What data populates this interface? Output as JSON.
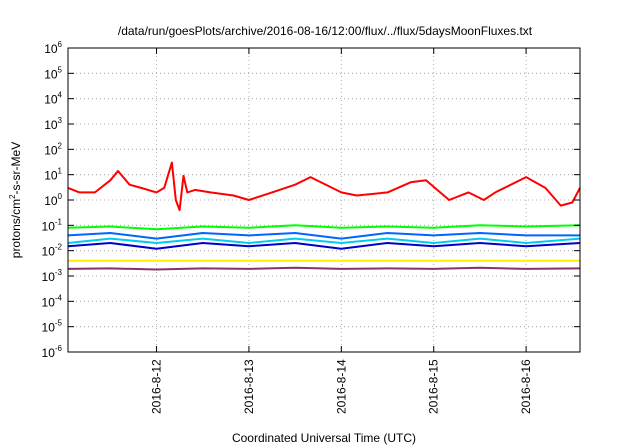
{
  "chart_data": {
    "type": "line",
    "title": "/data/run/goesPlots/archive/2016-08-16/12:00/flux/../flux/5daysMoonFluxes.txt",
    "xlabel": "Coordinated Universal Time (UTC)",
    "ylabel": {
      "prefix": "protons/cm",
      "sup": "2",
      "suffix": "-s-sr-MeV"
    },
    "y_scale": "log",
    "ylim": [
      1e-06,
      1000000.0
    ],
    "y_ticks": [
      {
        "base": "10",
        "exp": "-6",
        "value": 1e-06
      },
      {
        "base": "10",
        "exp": "-5",
        "value": 1e-05
      },
      {
        "base": "10",
        "exp": "-4",
        "value": 0.0001
      },
      {
        "base": "10",
        "exp": "-3",
        "value": 0.001
      },
      {
        "base": "10",
        "exp": "-2",
        "value": 0.01
      },
      {
        "base": "10",
        "exp": "-1",
        "value": 0.1
      },
      {
        "base": "10",
        "exp": "0",
        "value": 1
      },
      {
        "base": "10",
        "exp": "1",
        "value": 10
      },
      {
        "base": "10",
        "exp": "2",
        "value": 100
      },
      {
        "base": "10",
        "exp": "3",
        "value": 1000
      },
      {
        "base": "10",
        "exp": "4",
        "value": 10000
      },
      {
        "base": "10",
        "exp": "5",
        "value": 100000
      },
      {
        "base": "10",
        "exp": "6",
        "value": 1000000
      }
    ],
    "xlim": [
      "2016-08-11 01:00",
      "2016-08-16 14:00"
    ],
    "x_ticks": [
      "2016-8-12",
      "2016-8-13",
      "2016-8-14",
      "2016-8-15",
      "2016-8-16"
    ],
    "grid": true,
    "series": [
      {
        "color": "#ff0000",
        "x": [
          "2016-08-11 01:00",
          "2016-08-11 04:00",
          "2016-08-11 08:00",
          "2016-08-11 12:00",
          "2016-08-11 14:00",
          "2016-08-11 17:00",
          "2016-08-11 20:00",
          "2016-08-12 00:00",
          "2016-08-12 02:00",
          "2016-08-12 04:00",
          "2016-08-12 05:00",
          "2016-08-12 06:00",
          "2016-08-12 07:00",
          "2016-08-12 08:00",
          "2016-08-12 10:00",
          "2016-08-12 14:00",
          "2016-08-12 20:00",
          "2016-08-13 00:00",
          "2016-08-13 06:00",
          "2016-08-13 12:00",
          "2016-08-13 16:00",
          "2016-08-14 00:00",
          "2016-08-14 04:00",
          "2016-08-14 12:00",
          "2016-08-14 18:00",
          "2016-08-14 22:00",
          "2016-08-15 04:00",
          "2016-08-15 09:00",
          "2016-08-15 13:00",
          "2016-08-15 16:00",
          "2016-08-16 00:00",
          "2016-08-16 05:00",
          "2016-08-16 09:00",
          "2016-08-16 12:00",
          "2016-08-16 14:00"
        ],
        "values": [
          3,
          2,
          2,
          6,
          14,
          4,
          3,
          2,
          3,
          30,
          1,
          0.4,
          9,
          2,
          2.5,
          2,
          1.5,
          1,
          2,
          4,
          8,
          2,
          1.5,
          2,
          5,
          6,
          1,
          2,
          1,
          2,
          8,
          3,
          0.6,
          0.8,
          3
        ]
      },
      {
        "color": "#00ff00",
        "x": [
          "2016-08-11 01:00",
          "2016-08-11 12:00",
          "2016-08-12 00:00",
          "2016-08-12 12:00",
          "2016-08-13 00:00",
          "2016-08-13 12:00",
          "2016-08-14 00:00",
          "2016-08-14 12:00",
          "2016-08-15 00:00",
          "2016-08-15 12:00",
          "2016-08-16 00:00",
          "2016-08-16 14:00"
        ],
        "values": [
          0.08,
          0.09,
          0.07,
          0.09,
          0.08,
          0.1,
          0.08,
          0.09,
          0.08,
          0.1,
          0.09,
          0.1
        ]
      },
      {
        "color": "#00ccee",
        "x": [
          "2016-08-11 01:00",
          "2016-08-11 12:00",
          "2016-08-12 00:00",
          "2016-08-12 12:00",
          "2016-08-13 00:00",
          "2016-08-13 12:00",
          "2016-08-14 00:00",
          "2016-08-14 12:00",
          "2016-08-15 00:00",
          "2016-08-15 12:00",
          "2016-08-16 00:00",
          "2016-08-16 14:00"
        ],
        "values": [
          0.02,
          0.03,
          0.02,
          0.03,
          0.02,
          0.03,
          0.02,
          0.03,
          0.02,
          0.03,
          0.02,
          0.03
        ]
      },
      {
        "color": "#0066ff",
        "x": [
          "2016-08-11 01:00",
          "2016-08-11 12:00",
          "2016-08-12 00:00",
          "2016-08-12 12:00",
          "2016-08-13 00:00",
          "2016-08-13 12:00",
          "2016-08-14 00:00",
          "2016-08-14 12:00",
          "2016-08-15 00:00",
          "2016-08-15 12:00",
          "2016-08-16 00:00",
          "2016-08-16 14:00"
        ],
        "values": [
          0.04,
          0.05,
          0.03,
          0.05,
          0.04,
          0.05,
          0.03,
          0.05,
          0.04,
          0.05,
          0.04,
          0.04
        ]
      },
      {
        "color": "#0000cc",
        "x": [
          "2016-08-11 01:00",
          "2016-08-11 12:00",
          "2016-08-12 00:00",
          "2016-08-12 12:00",
          "2016-08-13 00:00",
          "2016-08-13 12:00",
          "2016-08-14 00:00",
          "2016-08-14 12:00",
          "2016-08-15 00:00",
          "2016-08-15 12:00",
          "2016-08-16 00:00",
          "2016-08-16 14:00"
        ],
        "values": [
          0.015,
          0.02,
          0.012,
          0.02,
          0.015,
          0.02,
          0.012,
          0.02,
          0.015,
          0.02,
          0.015,
          0.02
        ]
      },
      {
        "color": "#ffee00",
        "x": [
          "2016-08-11 01:00",
          "2016-08-16 14:00"
        ],
        "values": [
          0.004,
          0.004
        ]
      },
      {
        "color": "#883366",
        "x": [
          "2016-08-11 01:00",
          "2016-08-11 12:00",
          "2016-08-12 00:00",
          "2016-08-12 12:00",
          "2016-08-13 00:00",
          "2016-08-13 12:00",
          "2016-08-14 00:00",
          "2016-08-14 12:00",
          "2016-08-15 00:00",
          "2016-08-15 12:00",
          "2016-08-16 00:00",
          "2016-08-16 14:00"
        ],
        "values": [
          0.0019,
          0.002,
          0.0018,
          0.002,
          0.0019,
          0.0021,
          0.0019,
          0.002,
          0.0019,
          0.0021,
          0.0019,
          0.002
        ]
      }
    ]
  }
}
